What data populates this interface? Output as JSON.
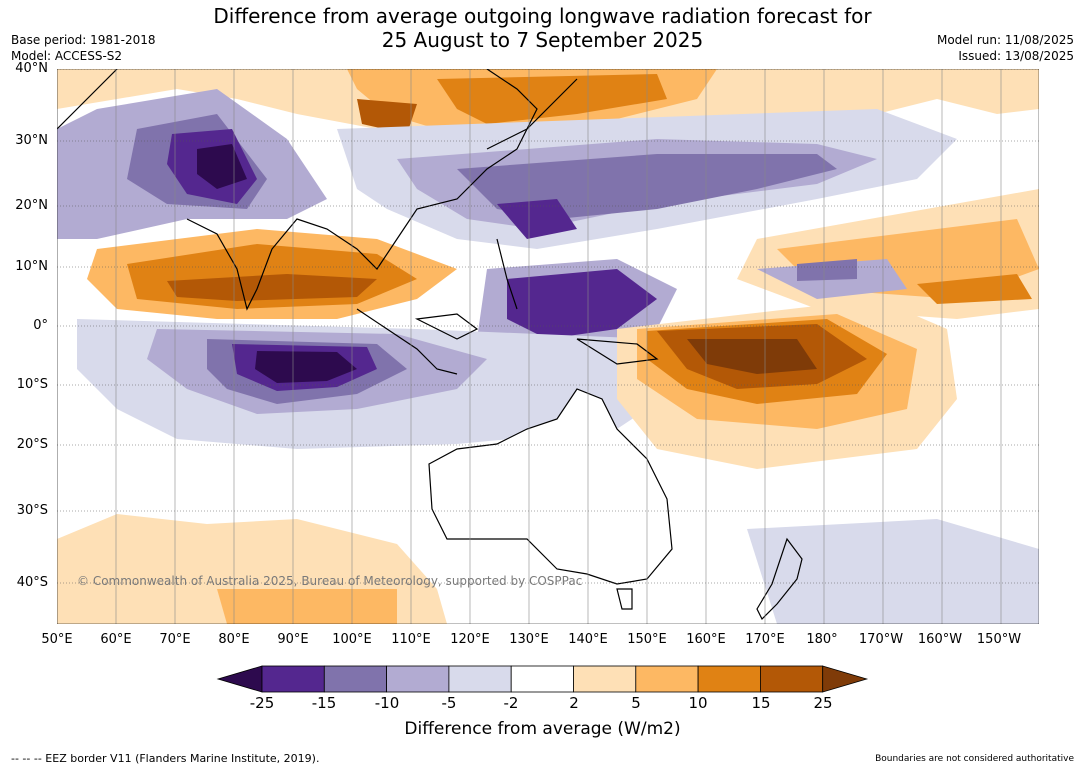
{
  "title_line1": "Difference from average outgoing longwave radiation forecast for",
  "title_line2": "25 August to 7 September 2025",
  "base_period": "Base period: 1981-2018",
  "model": "Model: ACCESS-S2",
  "model_run": "Model run: 11/08/2025",
  "issued": "Issued: 13/08/2025",
  "lat_labels": [
    "40°N",
    "30°N",
    "20°N",
    "10°N",
    "0°",
    "10°S",
    "20°S",
    "30°S",
    "40°S"
  ],
  "lon_labels": [
    "50°E",
    "60°E",
    "70°E",
    "80°E",
    "90°E",
    "100°E",
    "110°E",
    "120°E",
    "130°E",
    "140°E",
    "150°E",
    "160°E",
    "170°E",
    "180°",
    "170°W",
    "160°W",
    "150°W"
  ],
  "copyright": "© Commonwealth of Australia 2025, Bureau of Meteorology, supported by COSPPac",
  "colorbar": {
    "title": "Difference from average (W/m2)",
    "ticks": [
      "-25",
      "-15",
      "-10",
      "-5",
      "-2",
      "2",
      "5",
      "10",
      "15",
      "25"
    ],
    "colors": [
      "#2d0a4e",
      "#54278f",
      "#8073ac",
      "#b2abd2",
      "#d8daeb",
      "#ffffff",
      "#fee0b6",
      "#fdb863",
      "#e08214",
      "#b35806",
      "#7f3b08"
    ]
  },
  "footer_left": "--  --  -- EEZ border V11 (Flanders Marine Institute, 2019).",
  "footer_right": "Boundaries are not considered authoritative"
}
